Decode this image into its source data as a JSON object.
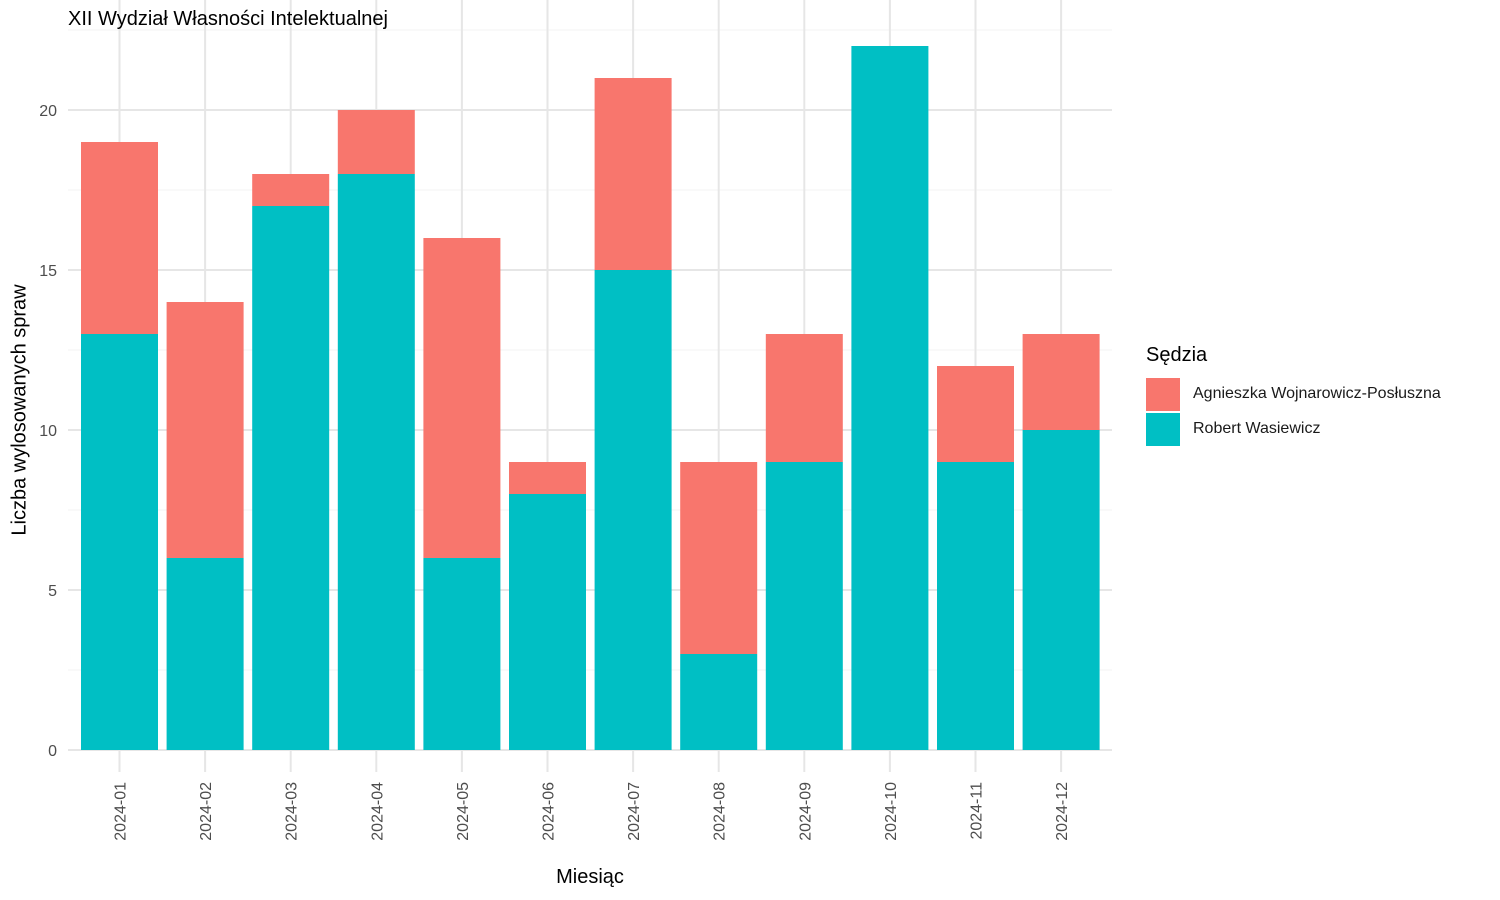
{
  "chart_data": {
    "type": "bar",
    "stacked": true,
    "title": "XII Wydział Własności Intelektualnej",
    "xlabel": "Miesiąc",
    "ylabel": "Liczba wylosowanych spraw",
    "categories": [
      "2024-01",
      "2024-02",
      "2024-03",
      "2024-04",
      "2024-05",
      "2024-06",
      "2024-07",
      "2024-08",
      "2024-09",
      "2024-10",
      "2024-11",
      "2024-12"
    ],
    "series": [
      {
        "name": "Robert Wasiewicz",
        "color": "#00BFC4",
        "values": [
          13,
          6,
          17,
          18,
          6,
          8,
          15,
          3,
          9,
          22,
          9,
          10
        ]
      },
      {
        "name": "Agnieszka Wojnarowicz-Posłuszna",
        "color": "#F8766D",
        "values": [
          6,
          8,
          1,
          2,
          10,
          1,
          6,
          6,
          4,
          0,
          3,
          3
        ]
      }
    ],
    "ylim": [
      0,
      22.8
    ],
    "yticks": [
      0,
      5,
      10,
      15,
      20
    ],
    "grid": true,
    "legend": {
      "title": "Sędzia",
      "position": "right"
    }
  }
}
